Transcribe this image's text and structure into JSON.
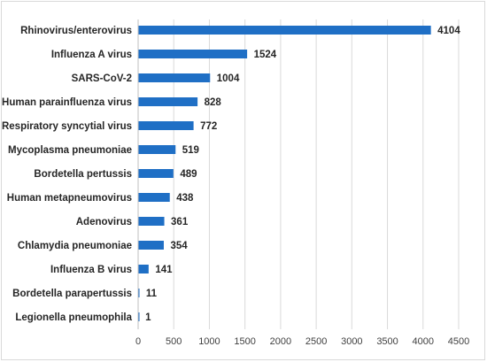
{
  "chart_data": {
    "type": "bar",
    "orientation": "horizontal",
    "title": "",
    "xlabel": "",
    "ylabel": "",
    "categories": [
      "Rhinovirus/enterovirus",
      "Influenza A virus",
      "SARS-CoV-2",
      "Human parainfluenza virus",
      "Respiratory syncytial virus",
      "Mycoplasma pneumoniae",
      "Bordetella pertussis",
      "Human metapneumovirus",
      "Adenovirus",
      "Chlamydia pneumoniae",
      "Influenza B virus",
      "Bordetella parapertussis",
      "Legionella pneumophila"
    ],
    "values": [
      4104,
      1524,
      1004,
      828,
      772,
      519,
      489,
      438,
      361,
      354,
      141,
      11,
      1
    ],
    "xlim": [
      0,
      4500
    ],
    "xticks": [
      "0",
      "500",
      "1000",
      "1500",
      "2000",
      "2500",
      "3000",
      "3500",
      "4000",
      "4500"
    ],
    "grid": true,
    "legend": "none",
    "bar_color": "#1f6fc5"
  }
}
